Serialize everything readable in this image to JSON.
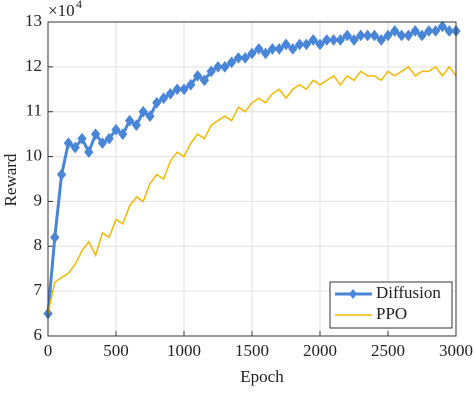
{
  "chart_data": {
    "type": "line",
    "xlabel": "Epoch",
    "ylabel": "Reward",
    "y_multiplier": "×10",
    "y_multiplier_exponent": "4",
    "x": [
      0,
      50,
      100,
      150,
      200,
      250,
      300,
      350,
      400,
      450,
      500,
      550,
      600,
      650,
      700,
      750,
      800,
      850,
      900,
      950,
      1000,
      1050,
      1100,
      1150,
      1200,
      1250,
      1300,
      1350,
      1400,
      1450,
      1500,
      1550,
      1600,
      1650,
      1700,
      1750,
      1800,
      1850,
      1900,
      1950,
      2000,
      2050,
      2100,
      2150,
      2200,
      2250,
      2300,
      2350,
      2400,
      2450,
      2500,
      2550,
      2600,
      2650,
      2700,
      2750,
      2800,
      2850,
      2900,
      2950,
      3000
    ],
    "series": [
      {
        "name": "Diffusion",
        "color": "#4a86d8",
        "marker": true,
        "values": [
          6.5,
          8.2,
          9.6,
          10.3,
          10.2,
          10.4,
          10.1,
          10.5,
          10.3,
          10.4,
          10.6,
          10.5,
          10.8,
          10.7,
          11.0,
          10.9,
          11.2,
          11.3,
          11.4,
          11.5,
          11.5,
          11.6,
          11.8,
          11.7,
          11.9,
          12.0,
          12.0,
          12.1,
          12.2,
          12.2,
          12.3,
          12.4,
          12.3,
          12.4,
          12.4,
          12.5,
          12.4,
          12.5,
          12.5,
          12.6,
          12.5,
          12.6,
          12.6,
          12.6,
          12.7,
          12.6,
          12.7,
          12.7,
          12.7,
          12.6,
          12.7,
          12.8,
          12.7,
          12.7,
          12.8,
          12.7,
          12.8,
          12.8,
          12.9,
          12.8,
          12.8
        ]
      },
      {
        "name": "PPO",
        "color": "#f5b800",
        "marker": false,
        "values": [
          6.5,
          7.2,
          7.3,
          7.4,
          7.6,
          7.9,
          8.1,
          7.8,
          8.3,
          8.2,
          8.6,
          8.5,
          8.9,
          9.1,
          9.0,
          9.4,
          9.6,
          9.5,
          9.9,
          10.1,
          10.0,
          10.3,
          10.5,
          10.4,
          10.7,
          10.8,
          10.9,
          10.8,
          11.1,
          11.0,
          11.2,
          11.3,
          11.2,
          11.4,
          11.5,
          11.3,
          11.5,
          11.6,
          11.5,
          11.7,
          11.6,
          11.7,
          11.8,
          11.6,
          11.8,
          11.7,
          11.9,
          11.8,
          11.8,
          11.7,
          11.9,
          11.8,
          11.9,
          12.0,
          11.8,
          11.9,
          11.9,
          12.0,
          11.8,
          12.0,
          11.8
        ]
      }
    ],
    "xlim": [
      0,
      3000
    ],
    "xticks": [
      0,
      500,
      1000,
      1500,
      2000,
      2500,
      3000
    ],
    "ylim": [
      6,
      13
    ],
    "yticks": [
      6,
      7,
      8,
      9,
      10,
      11,
      12,
      13
    ],
    "grid": true,
    "legend": "lower right"
  }
}
